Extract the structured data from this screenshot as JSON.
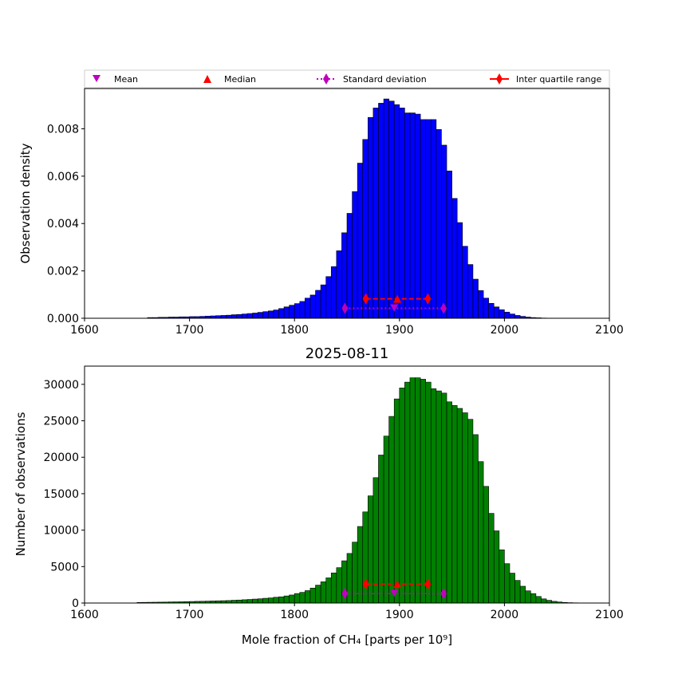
{
  "colors": {
    "density_bar": "#0000ff",
    "count_bar": "#008000",
    "mean_marker": "#bf00bf",
    "median_marker": "#ff0000",
    "std_line": "#bf00bf",
    "iqr_line": "#ff0000"
  },
  "legend": {
    "mean": "Mean",
    "median": "Median",
    "std": "Standard deviation",
    "iqr": "Inter quartile range"
  },
  "chart_data": [
    {
      "type": "bar",
      "name": "density",
      "title": "",
      "xlabel": "",
      "ylabel": "Observation density",
      "xlim": [
        1600,
        2100
      ],
      "ylim": [
        0,
        0.0097
      ],
      "x_ticks": [
        "1600",
        "1700",
        "1800",
        "1900",
        "2000",
        "2100"
      ],
      "y_ticks": [
        "0.000",
        "0.002",
        "0.004",
        "0.006",
        "0.008"
      ],
      "legend_position": "above",
      "bin_width": 5,
      "bin_start": 1660,
      "values": [
        3e-05,
        3e-05,
        4e-05,
        4e-05,
        5e-05,
        5e-05,
        6e-05,
        6e-05,
        7e-05,
        7e-05,
        8e-05,
        9e-05,
        0.0001,
        0.00011,
        0.00012,
        0.00013,
        0.00015,
        0.00016,
        0.00018,
        0.0002,
        0.00022,
        0.00025,
        0.00028,
        0.00031,
        0.00035,
        0.00041,
        0.00048,
        0.00055,
        0.00062,
        0.00071,
        0.00085,
        0.00098,
        0.00118,
        0.00141,
        0.00176,
        0.00218,
        0.00285,
        0.00361,
        0.00443,
        0.00535,
        0.00655,
        0.00755,
        0.00848,
        0.00888,
        0.00908,
        0.00926,
        0.00917,
        0.00902,
        0.00888,
        0.00867,
        0.00867,
        0.00862,
        0.00839,
        0.00839,
        0.00839,
        0.00797,
        0.00731,
        0.00622,
        0.00506,
        0.00404,
        0.00304,
        0.00227,
        0.00165,
        0.00117,
        0.00085,
        0.00063,
        0.00048,
        0.00036,
        0.00026,
        0.00018,
        0.00012,
        8e-05,
        5e-05,
        3e-05,
        2e-05,
        1e-05
      ],
      "stats": {
        "mean": 1895,
        "median": 1898,
        "std_range": [
          1848,
          1942
        ],
        "iqr_range": [
          1868,
          1927
        ]
      }
    },
    {
      "type": "bar",
      "name": "count",
      "title": "2025-08-11",
      "xlabel": "Mole fraction of CH₄ [parts per 10⁹]",
      "ylabel": "Number of observations",
      "xlim": [
        1600,
        2100
      ],
      "ylim": [
        0,
        32500
      ],
      "x_ticks": [
        "1600",
        "1700",
        "1800",
        "1900",
        "2000",
        "2100"
      ],
      "y_ticks": [
        "0",
        "5000",
        "10000",
        "15000",
        "20000",
        "25000",
        "30000"
      ],
      "bin_width": 5,
      "bin_start": 1650,
      "values": [
        80,
        90,
        100,
        110,
        120,
        130,
        150,
        160,
        170,
        190,
        210,
        230,
        240,
        260,
        280,
        300,
        320,
        340,
        380,
        410,
        450,
        490,
        540,
        580,
        650,
        700,
        790,
        850,
        970,
        1100,
        1300,
        1460,
        1700,
        2050,
        2450,
        2910,
        3450,
        4130,
        4850,
        5790,
        6800,
        8350,
        10500,
        12500,
        14700,
        17200,
        20300,
        22900,
        25600,
        28000,
        29500,
        30300,
        30900,
        30900,
        30700,
        30300,
        29400,
        29100,
        28800,
        27600,
        27100,
        26700,
        26100,
        25200,
        23100,
        19400,
        16000,
        12300,
        9900,
        7300,
        5400,
        4100,
        3100,
        2300,
        1670,
        1290,
        900,
        570,
        370,
        230,
        140,
        80,
        50,
        30
      ],
      "stats": {
        "mean": 1895,
        "median": 1898,
        "std_range": [
          1848,
          1942
        ],
        "iqr_range": [
          1868,
          1927
        ]
      }
    }
  ]
}
